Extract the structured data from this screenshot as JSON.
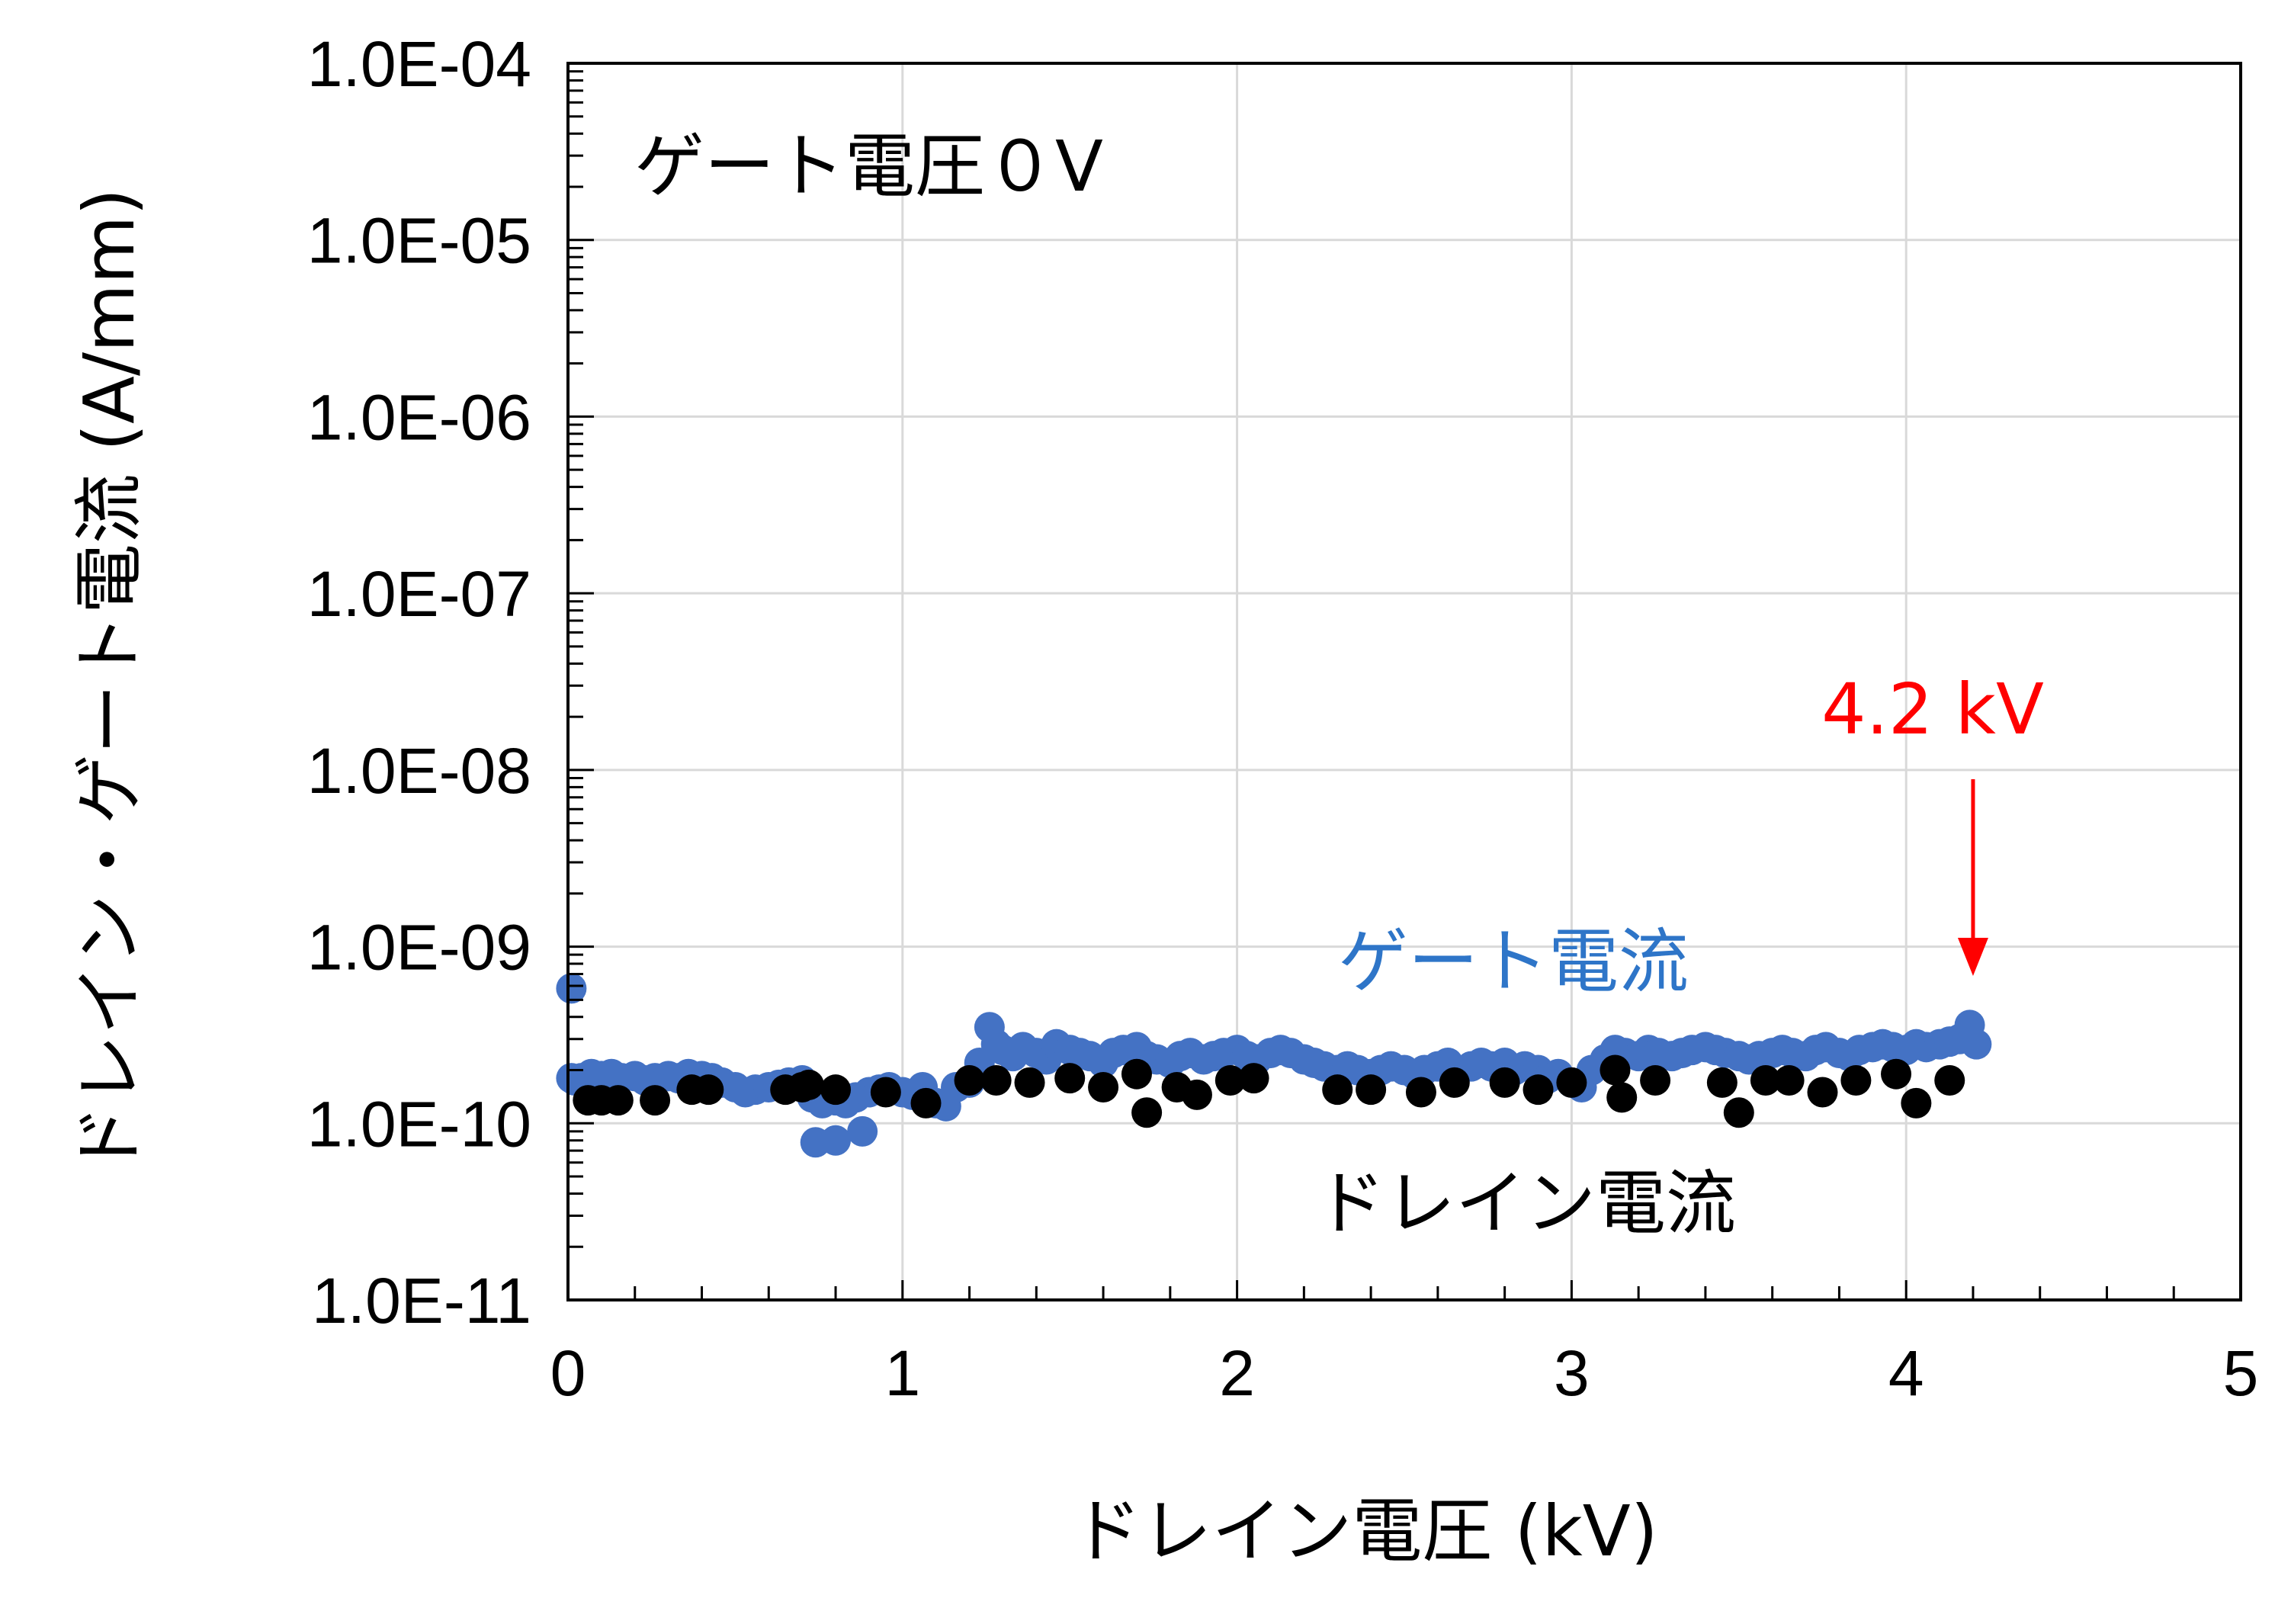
{
  "chart_data": {
    "type": "scatter",
    "title": "",
    "xlabel": "ドレイン電圧 (kV)",
    "ylabel": "ドレイン・ゲート電流 (A/mm)",
    "xlim": [
      0,
      5
    ],
    "ylim": [
      1e-11,
      0.0001
    ],
    "yscale": "log",
    "x_ticks": [
      "0",
      "1",
      "2",
      "3",
      "4",
      "5"
    ],
    "y_ticks": [
      "1.0E-11",
      "1.0E-10",
      "1.0E-09",
      "1.0E-08",
      "1.0E-07",
      "1.0E-06",
      "1.0E-05",
      "1.0E-04"
    ],
    "grid": true,
    "annotations": {
      "condition": "ゲート電圧０V",
      "gate_label": "ゲート電流",
      "drain_label": "ドレイン電流",
      "breakdown_label": "4.2 kV",
      "breakdown_x": 4.2
    },
    "colors": {
      "gate": "#4472c4",
      "gate_label": "#2e75c8",
      "drain": "#000000",
      "breakdown": "#ff0000",
      "grid": "#d9d9d9"
    },
    "series": [
      {
        "key": "gate",
        "x": [
          0.01,
          0.02,
          0.04,
          0.07,
          0.1,
          0.13,
          0.16,
          0.2,
          0.23,
          0.26,
          0.3,
          0.33,
          0.36,
          0.4,
          0.43,
          0.46,
          0.5,
          0.53,
          0.56,
          0.6,
          0.63,
          0.66,
          0.7,
          0.73,
          0.76,
          0.8,
          0.83,
          0.86,
          0.9,
          0.93,
          0.96,
          1.0,
          1.03,
          1.06,
          1.1,
          1.13,
          1.16,
          1.2,
          1.23,
          1.26,
          1.28,
          1.3,
          1.33,
          1.36,
          1.4,
          1.43,
          1.46,
          1.5,
          1.53,
          1.56,
          1.6,
          1.63,
          1.66,
          1.7,
          1.73,
          1.76,
          1.8,
          1.83,
          1.86,
          1.9,
          1.93,
          1.96,
          2.0,
          2.03,
          2.06,
          2.1,
          2.13,
          2.16,
          2.2,
          2.23,
          2.26,
          2.3,
          2.33,
          2.36,
          2.4,
          2.43,
          2.46,
          2.5,
          2.53,
          2.56,
          2.6,
          2.63,
          2.66,
          2.7,
          2.73,
          2.76,
          2.8,
          2.83,
          2.86,
          2.9,
          2.93,
          2.96,
          3.0,
          3.03,
          3.06,
          3.1,
          3.13,
          3.16,
          3.2,
          3.23,
          3.26,
          3.3,
          3.33,
          3.36,
          3.4,
          3.43,
          3.46,
          3.5,
          3.53,
          3.56,
          3.6,
          3.63,
          3.66,
          3.7,
          3.73,
          3.76,
          3.8,
          3.83,
          3.86,
          3.9,
          3.93,
          3.96,
          4.0,
          4.03,
          4.06,
          4.1,
          4.13,
          4.16,
          4.19,
          4.21,
          0.74,
          0.8,
          0.88,
          0.01
        ],
        "y": [
          1.8e-10,
          1.75e-10,
          1.8e-10,
          1.9e-10,
          1.85e-10,
          1.9e-10,
          1.8e-10,
          1.85e-10,
          1.75e-10,
          1.8e-10,
          1.85e-10,
          1.8e-10,
          1.9e-10,
          1.85e-10,
          1.8e-10,
          1.7e-10,
          1.6e-10,
          1.5e-10,
          1.55e-10,
          1.6e-10,
          1.65e-10,
          1.7e-10,
          1.75e-10,
          1.4e-10,
          1.3e-10,
          1.35e-10,
          1.3e-10,
          1.4e-10,
          1.5e-10,
          1.55e-10,
          1.6e-10,
          1.5e-10,
          1.45e-10,
          1.6e-10,
          1.3e-10,
          1.25e-10,
          1.6e-10,
          1.7e-10,
          2.2e-10,
          3.5e-10,
          2.8e-10,
          2.6e-10,
          2.4e-10,
          2.7e-10,
          2.5e-10,
          2.3e-10,
          2.8e-10,
          2.6e-10,
          2.5e-10,
          2.4e-10,
          2.2e-10,
          2.5e-10,
          2.6e-10,
          2.7e-10,
          2.4e-10,
          2.3e-10,
          2.2e-10,
          2.4e-10,
          2.5e-10,
          2.3e-10,
          2.4e-10,
          2.5e-10,
          2.6e-10,
          2.4e-10,
          2.3e-10,
          2.5e-10,
          2.6e-10,
          2.5e-10,
          2.3e-10,
          2.2e-10,
          2.1e-10,
          2e-10,
          2.1e-10,
          2e-10,
          1.9e-10,
          2e-10,
          2.1e-10,
          2e-10,
          1.9e-10,
          2e-10,
          2.1e-10,
          2.2e-10,
          2e-10,
          2.1e-10,
          2.2e-10,
          2.1e-10,
          2.2e-10,
          2e-10,
          2.1e-10,
          2e-10,
          1.8e-10,
          1.9e-10,
          1.7e-10,
          1.6e-10,
          2e-10,
          2.3e-10,
          2.6e-10,
          2.5e-10,
          2.4e-10,
          2.6e-10,
          2.5e-10,
          2.4e-10,
          2.5e-10,
          2.6e-10,
          2.7e-10,
          2.6e-10,
          2.5e-10,
          2.4e-10,
          2.3e-10,
          2.4e-10,
          2.5e-10,
          2.6e-10,
          2.5e-10,
          2.4e-10,
          2.6e-10,
          2.7e-10,
          2.5e-10,
          2.4e-10,
          2.6e-10,
          2.7e-10,
          2.8e-10,
          2.7e-10,
          2.6e-10,
          2.8e-10,
          2.7e-10,
          2.8e-10,
          2.9e-10,
          3e-10,
          3.6e-10,
          2.8e-10,
          7.8e-11,
          8e-11,
          9e-11,
          5.8e-10
        ]
      },
      {
        "key": "drain",
        "x": [
          0.06,
          0.1,
          0.15,
          0.26,
          0.37,
          0.42,
          0.65,
          0.7,
          0.72,
          0.8,
          0.95,
          1.07,
          1.2,
          1.28,
          1.38,
          1.5,
          1.6,
          1.7,
          1.73,
          1.82,
          1.88,
          1.98,
          2.05,
          2.3,
          2.4,
          2.55,
          2.65,
          2.8,
          2.9,
          3.0,
          3.13,
          3.15,
          3.25,
          3.45,
          3.5,
          3.58,
          3.65,
          3.75,
          3.85,
          3.97,
          4.03,
          4.13
        ],
        "y": [
          1.35e-10,
          1.35e-10,
          1.35e-10,
          1.35e-10,
          1.55e-10,
          1.55e-10,
          1.55e-10,
          1.6e-10,
          1.65e-10,
          1.55e-10,
          1.5e-10,
          1.3e-10,
          1.75e-10,
          1.75e-10,
          1.7e-10,
          1.8e-10,
          1.6e-10,
          1.9e-10,
          1.15e-10,
          1.6e-10,
          1.45e-10,
          1.75e-10,
          1.8e-10,
          1.55e-10,
          1.55e-10,
          1.5e-10,
          1.7e-10,
          1.7e-10,
          1.55e-10,
          1.7e-10,
          2e-10,
          1.4e-10,
          1.75e-10,
          1.7e-10,
          1.15e-10,
          1.75e-10,
          1.75e-10,
          1.5e-10,
          1.75e-10,
          1.9e-10,
          1.3e-10,
          1.75e-10
        ]
      }
    ]
  }
}
